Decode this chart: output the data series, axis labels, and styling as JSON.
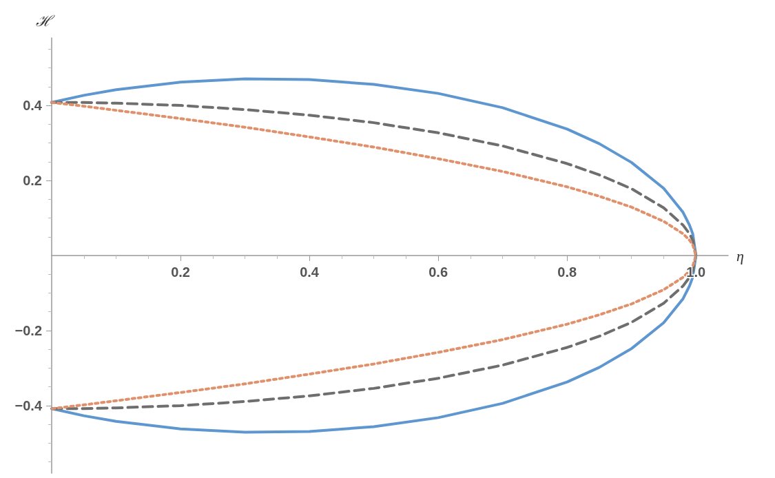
{
  "chart_data": {
    "type": "line",
    "xlabel": "η",
    "ylabel": "ℋ",
    "xlim": [
      0,
      1.05
    ],
    "ylim": [
      -0.58,
      0.58
    ],
    "xticks": [
      0.2,
      0.4,
      0.6,
      0.8,
      {
        "value": 1,
        "label": "1.0"
      }
    ],
    "yticks": [
      {
        "value": -0.4,
        "label": "−0.4"
      },
      {
        "value": -0.2,
        "label": "−0.2"
      },
      0.2,
      0.4
    ],
    "grid": false,
    "marker": "none",
    "series": [
      {
        "color": "#5e97d0",
        "line_style": "solid",
        "x": [
          0,
          0.05,
          0.1,
          0.2,
          0.3,
          0.4,
          0.5,
          0.6,
          0.7,
          0.8,
          0.85,
          0.9,
          0.95,
          0.98,
          0.99,
          0.995,
          1,
          0.995,
          0.99,
          0.98,
          0.95,
          0.9,
          0.85,
          0.8,
          0.7,
          0.6,
          0.5,
          0.4,
          0.3,
          0.2,
          0.1,
          0.05,
          0
        ],
        "values": [
          0.408,
          0.427,
          0.442,
          0.462,
          0.471,
          0.469,
          0.456,
          0.432,
          0.394,
          0.337,
          0.298,
          0.248,
          0.179,
          0.115,
          0.081,
          0.058,
          0,
          -0.058,
          -0.081,
          -0.115,
          -0.179,
          -0.248,
          -0.298,
          -0.337,
          -0.394,
          -0.432,
          -0.456,
          -0.469,
          -0.471,
          -0.462,
          -0.442,
          -0.427,
          -0.408
        ]
      },
      {
        "color": "#6e6e6e",
        "line_style": "dashed",
        "x": [
          0,
          0.05,
          0.1,
          0.2,
          0.3,
          0.4,
          0.5,
          0.6,
          0.7,
          0.8,
          0.85,
          0.9,
          0.95,
          0.98,
          0.99,
          0.995,
          1,
          0.995,
          0.99,
          0.98,
          0.95,
          0.9,
          0.85,
          0.8,
          0.7,
          0.6,
          0.5,
          0.4,
          0.3,
          0.2,
          0.1,
          0.05,
          0
        ],
        "values": [
          0.408,
          0.408,
          0.406,
          0.4,
          0.389,
          0.374,
          0.354,
          0.327,
          0.292,
          0.245,
          0.215,
          0.178,
          0.127,
          0.081,
          0.058,
          0.041,
          0,
          -0.041,
          -0.058,
          -0.081,
          -0.127,
          -0.178,
          -0.215,
          -0.245,
          -0.292,
          -0.327,
          -0.354,
          -0.374,
          -0.389,
          -0.4,
          -0.406,
          -0.408,
          -0.408
        ]
      },
      {
        "color": "#e0906a",
        "line_style": "dotted",
        "x": [
          0,
          0.05,
          0.1,
          0.2,
          0.3,
          0.4,
          0.5,
          0.6,
          0.7,
          0.8,
          0.85,
          0.9,
          0.95,
          0.98,
          0.99,
          0.995,
          1,
          0.995,
          0.99,
          0.98,
          0.95,
          0.9,
          0.85,
          0.8,
          0.7,
          0.6,
          0.5,
          0.4,
          0.3,
          0.2,
          0.1,
          0.05,
          0
        ],
        "values": [
          0.408,
          0.398,
          0.387,
          0.365,
          0.342,
          0.316,
          0.289,
          0.258,
          0.224,
          0.183,
          0.158,
          0.129,
          0.091,
          0.058,
          0.041,
          0.029,
          0,
          -0.029,
          -0.041,
          -0.058,
          -0.091,
          -0.129,
          -0.158,
          -0.183,
          -0.224,
          -0.258,
          -0.289,
          -0.316,
          -0.342,
          -0.365,
          -0.387,
          -0.398,
          -0.408
        ]
      }
    ]
  }
}
